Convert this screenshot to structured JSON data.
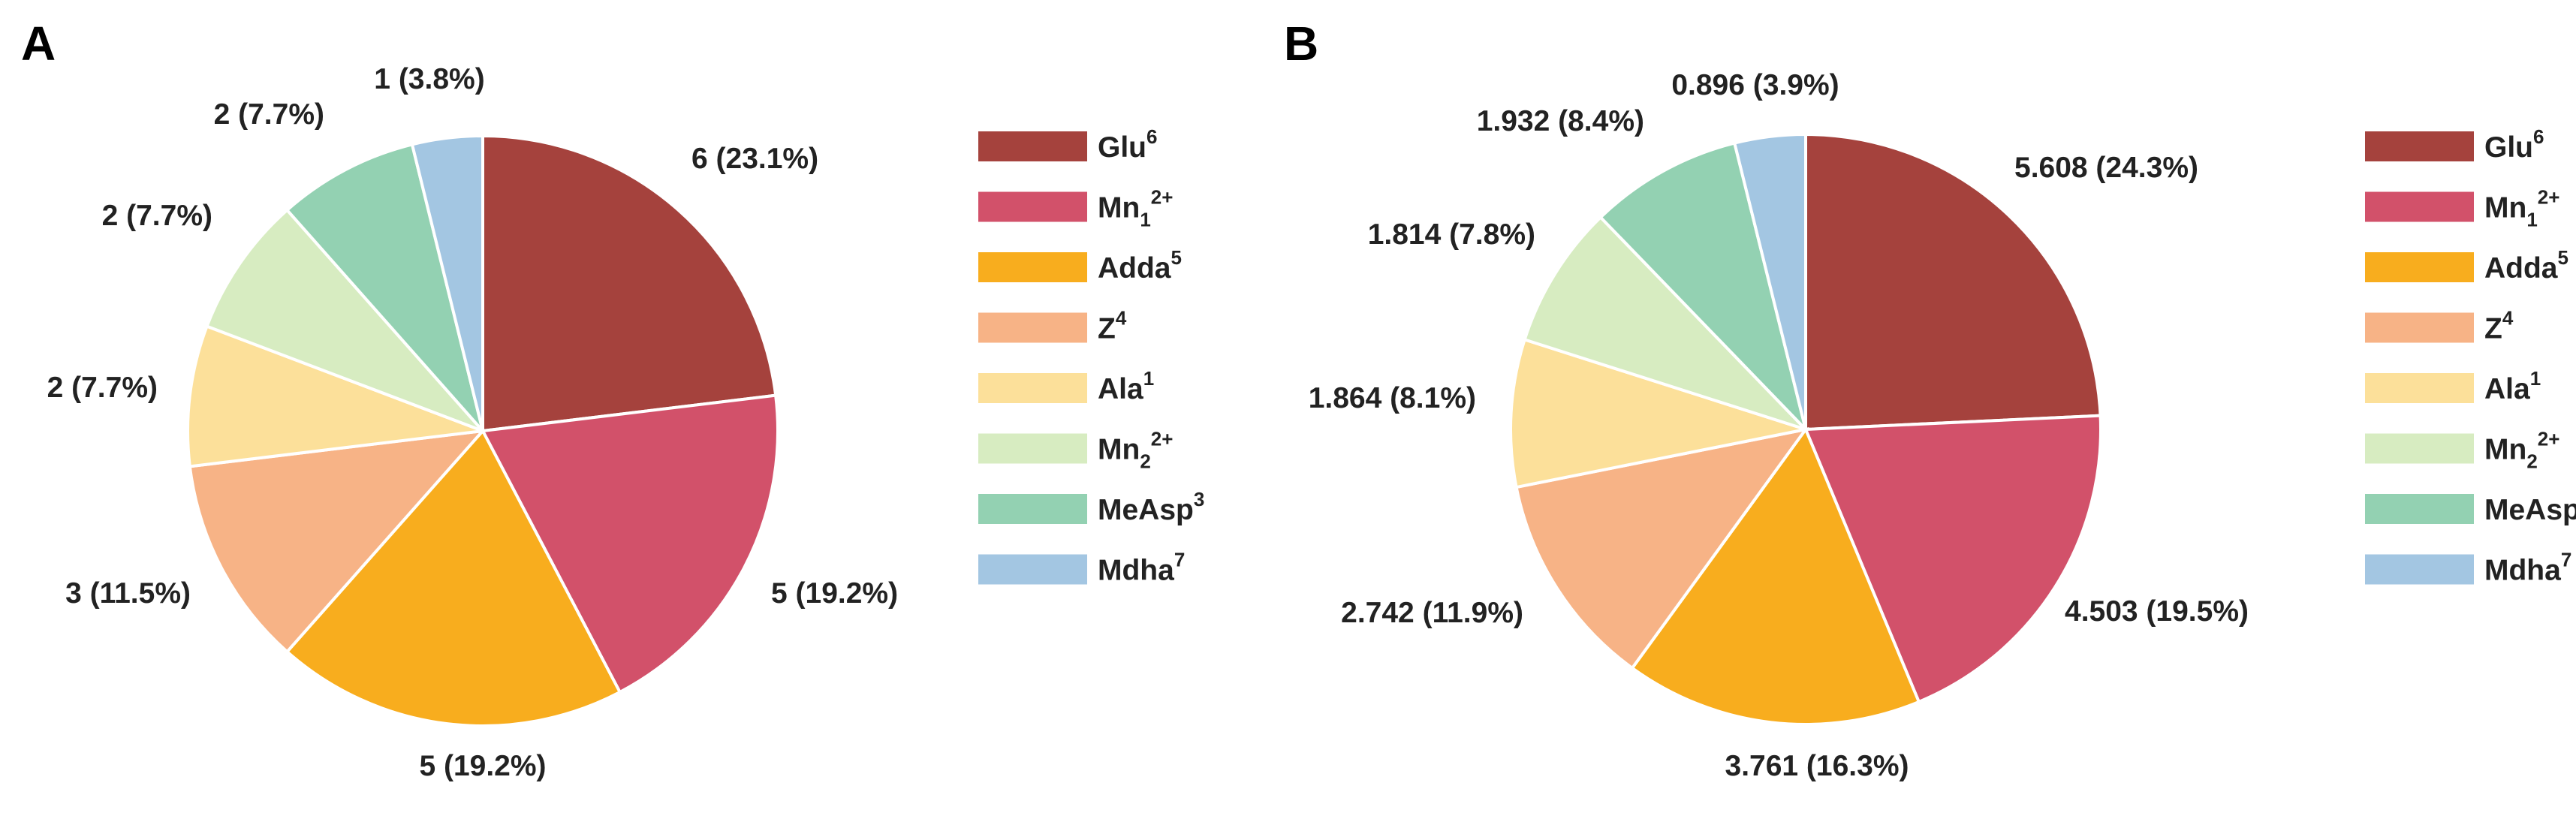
{
  "chart_data": [
    {
      "type": "pie",
      "panel": "A",
      "title": "",
      "unit_format": "count (percent)",
      "start": "top, clockwise",
      "legend_position": "right",
      "slices": [
        {
          "key": "glu",
          "value": 6,
          "percent": 23.1,
          "label": "6 (23.1%)",
          "color": "#A5423D"
        },
        {
          "key": "mn1",
          "value": 5,
          "percent": 19.2,
          "label": "5 (19.2%)",
          "color": "#D2516A"
        },
        {
          "key": "adda",
          "value": 5,
          "percent": 19.2,
          "label": "5 (19.2%)",
          "color": "#F8AD1E"
        },
        {
          "key": "z",
          "value": 3,
          "percent": 11.5,
          "label": "3 (11.5%)",
          "color": "#F7B386"
        },
        {
          "key": "ala",
          "value": 2,
          "percent": 7.7,
          "label": "2 (7.7%)",
          "color": "#FCE09A"
        },
        {
          "key": "mn2",
          "value": 2,
          "percent": 7.7,
          "label": "2 (7.7%)",
          "color": "#D7ECC1"
        },
        {
          "key": "measp",
          "value": 2,
          "percent": 7.7,
          "label": "2 (7.7%)",
          "color": "#93D1B2"
        },
        {
          "key": "mdha",
          "value": 1,
          "percent": 3.8,
          "label": "1 (3.8%)",
          "color": "#A3C6E2"
        }
      ]
    },
    {
      "type": "pie",
      "panel": "B",
      "title": "",
      "unit_format": "value (percent)",
      "start": "top, clockwise",
      "legend_position": "right",
      "slices": [
        {
          "key": "glu",
          "value": 5.608,
          "percent": 24.3,
          "label": "5.608 (24.3%)",
          "color": "#A5423D"
        },
        {
          "key": "mn1",
          "value": 4.503,
          "percent": 19.5,
          "label": "4.503 (19.5%)",
          "color": "#D2516A"
        },
        {
          "key": "adda",
          "value": 3.761,
          "percent": 16.3,
          "label": "3.761 (16.3%)",
          "color": "#F8AD1E"
        },
        {
          "key": "z",
          "value": 2.742,
          "percent": 11.9,
          "label": "2.742 (11.9%)",
          "color": "#F7B386"
        },
        {
          "key": "ala",
          "value": 1.864,
          "percent": 8.1,
          "label": "1.864 (8.1%)",
          "color": "#FCE09A"
        },
        {
          "key": "mn2",
          "value": 1.814,
          "percent": 7.8,
          "label": "1.814 (7.8%)",
          "color": "#D7ECC1"
        },
        {
          "key": "measp",
          "value": 1.932,
          "percent": 8.4,
          "label": "1.932 (8.4%)",
          "color": "#93D1B2"
        },
        {
          "key": "mdha",
          "value": 0.896,
          "percent": 3.9,
          "label": "0.896 (3.9%)",
          "color": "#A3C6E2"
        }
      ]
    }
  ],
  "legend": [
    {
      "key": "glu",
      "base": "Glu",
      "sub": "",
      "sup": "6",
      "color": "#A5423D"
    },
    {
      "key": "mn1",
      "base": "Mn",
      "sub": "1",
      "sup": "2+",
      "color": "#D2516A"
    },
    {
      "key": "adda",
      "base": "Adda",
      "sub": "",
      "sup": "5",
      "color": "#F8AD1E"
    },
    {
      "key": "z",
      "base": "Z",
      "sub": "",
      "sup": "4",
      "color": "#F7B386"
    },
    {
      "key": "ala",
      "base": "Ala",
      "sub": "",
      "sup": "1",
      "color": "#FCE09A"
    },
    {
      "key": "mn2",
      "base": "Mn",
      "sub": "2",
      "sup": "2+",
      "color": "#D7ECC1"
    },
    {
      "key": "measp",
      "base": "MeAsp",
      "sub": "",
      "sup": "3",
      "color": "#93D1B2"
    },
    {
      "key": "mdha",
      "base": "Mdha",
      "sub": "",
      "sup": "7",
      "color": "#A3C6E2"
    }
  ]
}
